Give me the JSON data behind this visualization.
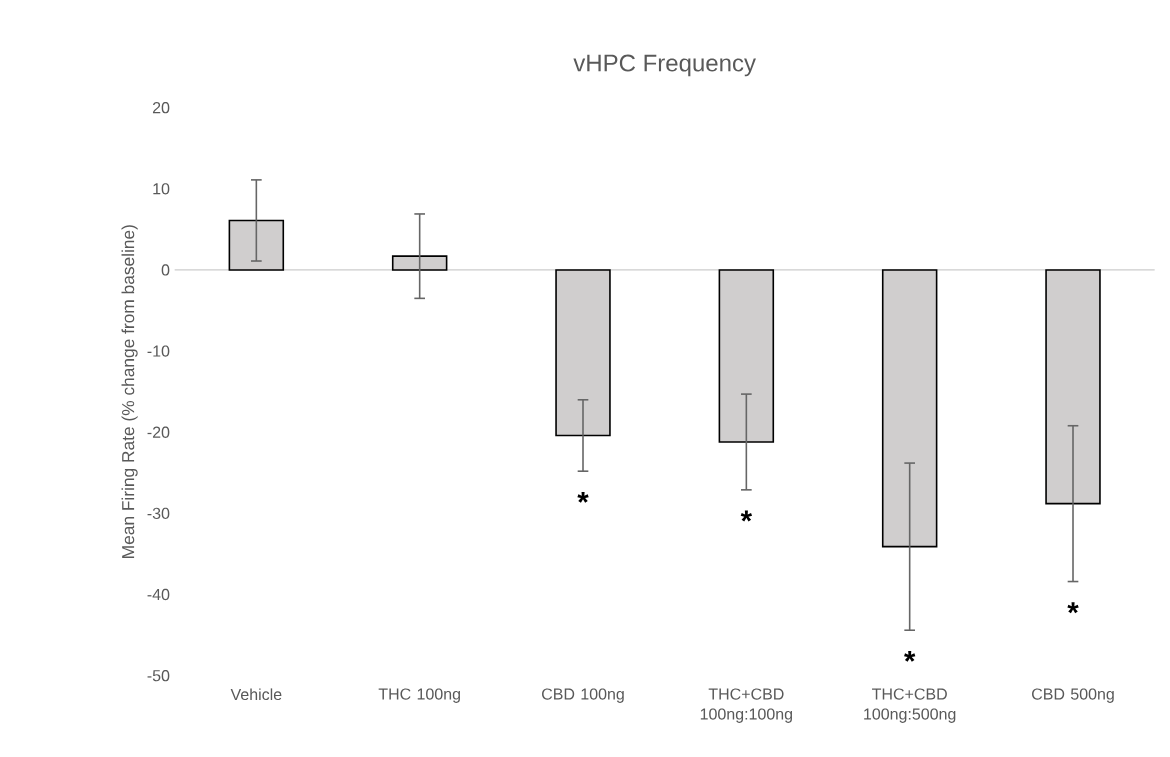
{
  "chart_data": {
    "type": "bar",
    "title": "vHPC Frequency",
    "ylabel": "Mean Firing Rate (% change from baseline)",
    "categories": [
      "Vehicle",
      "THC 100ng",
      "CBD 100ng",
      "THC+CBD 100ng:100ng",
      "THC+CBD 100ng:500ng",
      "CBD 500ng"
    ],
    "values": [
      6.1,
      1.7,
      -20.4,
      -21.2,
      -34.1,
      -28.8
    ],
    "errors": [
      5.0,
      5.2,
      4.4,
      5.9,
      10.3,
      9.6
    ],
    "color": "#d0cece",
    "ylim": [
      -50,
      20
    ],
    "yticks": [
      -50,
      -40,
      -30,
      -20,
      -10,
      0,
      10,
      20
    ],
    "annotations": [
      "*",
      "*",
      "*",
      "*"
    ]
  }
}
